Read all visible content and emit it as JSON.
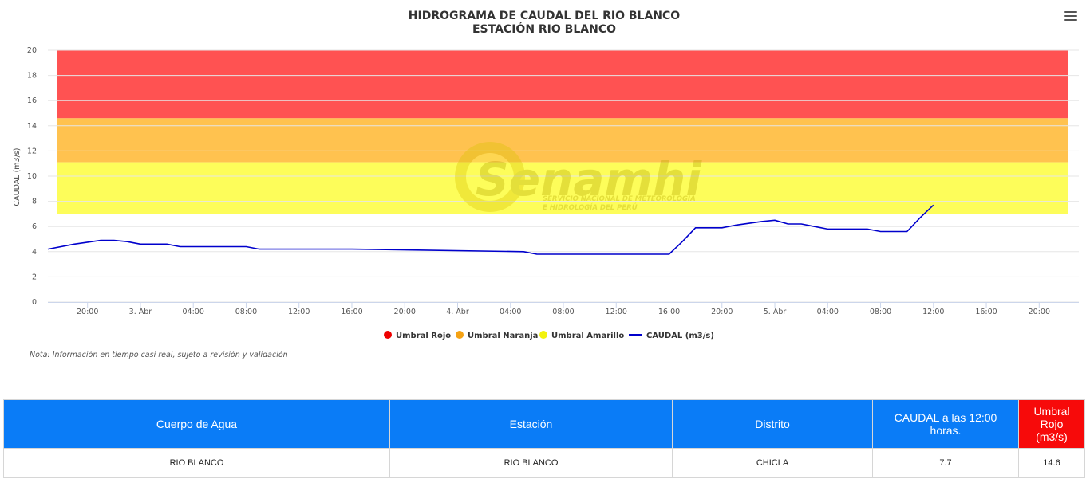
{
  "chart_data": {
    "type": "line",
    "title": "HIDROGRAMA DE CAUDAL DEL RIO BLANCO",
    "subtitle": "ESTACIÓN RIO BLANCO",
    "ylabel": "CAUDAL (m3/s)",
    "xlabel": "",
    "ylim": [
      0,
      20
    ],
    "y_ticks": [
      "0",
      "2",
      "4",
      "6",
      "8",
      "10",
      "12",
      "14",
      "16",
      "18",
      "20"
    ],
    "xlim": [
      "2024-04-02T17:00",
      "2024-04-05T23:00"
    ],
    "x_ticks": [
      {
        "t": "2024-04-02T20:00",
        "label": "20:00"
      },
      {
        "t": "2024-04-03T00:00",
        "label": "3. Abr"
      },
      {
        "t": "2024-04-03T04:00",
        "label": "04:00"
      },
      {
        "t": "2024-04-03T08:00",
        "label": "08:00"
      },
      {
        "t": "2024-04-03T12:00",
        "label": "12:00"
      },
      {
        "t": "2024-04-03T16:00",
        "label": "16:00"
      },
      {
        "t": "2024-04-03T20:00",
        "label": "20:00"
      },
      {
        "t": "2024-04-04T00:00",
        "label": "4. Abr"
      },
      {
        "t": "2024-04-04T04:00",
        "label": "04:00"
      },
      {
        "t": "2024-04-04T08:00",
        "label": "08:00"
      },
      {
        "t": "2024-04-04T12:00",
        "label": "12:00"
      },
      {
        "t": "2024-04-04T16:00",
        "label": "16:00"
      },
      {
        "t": "2024-04-04T20:00",
        "label": "20:00"
      },
      {
        "t": "2024-04-05T00:00",
        "label": "5. Abr"
      },
      {
        "t": "2024-04-05T04:00",
        "label": "04:00"
      },
      {
        "t": "2024-04-05T08:00",
        "label": "08:00"
      },
      {
        "t": "2024-04-05T12:00",
        "label": "12:00"
      },
      {
        "t": "2024-04-05T16:00",
        "label": "16:00"
      },
      {
        "t": "2024-04-05T20:00",
        "label": "20:00"
      }
    ],
    "bands": [
      {
        "name": "Umbral Rojo",
        "from": 14.6,
        "to": 20,
        "color": "#ff5252",
        "legend_color": "#ee0000"
      },
      {
        "name": "Umbral Naranja",
        "from": 11.1,
        "to": 14.6,
        "color": "#ffc24f",
        "legend_color": "#f5a214"
      },
      {
        "name": "Umbral Amarillo",
        "from": 7.0,
        "to": 11.1,
        "color": "#fdfd5a",
        "legend_color": "#f2f20e"
      }
    ],
    "series": [
      {
        "name": "CAUDAL (m3/s)",
        "color": "#0000cc",
        "x": [
          "2024-04-02T17:00",
          "2024-04-02T19:00",
          "2024-04-02T21:00",
          "2024-04-02T22:00",
          "2024-04-02T23:00",
          "2024-04-03T00:00",
          "2024-04-03T01:00",
          "2024-04-03T02:00",
          "2024-04-03T03:00",
          "2024-04-03T04:00",
          "2024-04-03T08:00",
          "2024-04-03T09:00",
          "2024-04-03T15:00",
          "2024-04-03T16:00",
          "2024-04-04T05:00",
          "2024-04-04T06:00",
          "2024-04-04T16:00",
          "2024-04-04T17:00",
          "2024-04-04T18:00",
          "2024-04-04T20:00",
          "2024-04-04T21:00",
          "2024-04-04T23:00",
          "2024-04-05T00:00",
          "2024-04-05T01:00",
          "2024-04-05T02:00",
          "2024-04-05T03:00",
          "2024-04-05T04:00",
          "2024-04-05T07:00",
          "2024-04-05T08:00",
          "2024-04-05T10:00",
          "2024-04-05T11:00",
          "2024-04-05T12:00"
        ],
        "values": [
          4.2,
          4.6,
          4.9,
          4.9,
          4.8,
          4.6,
          4.6,
          4.6,
          4.4,
          4.4,
          4.4,
          4.2,
          4.2,
          4.2,
          4.0,
          3.8,
          3.8,
          4.8,
          5.9,
          5.9,
          6.1,
          6.4,
          6.5,
          6.2,
          6.2,
          6.0,
          5.8,
          5.8,
          5.6,
          5.6,
          6.7,
          7.7
        ]
      }
    ]
  },
  "legend": {
    "items": [
      {
        "label": "Umbral Rojo",
        "color": "#ee0000"
      },
      {
        "label": "Umbral Naranja",
        "color": "#f5a214"
      },
      {
        "label": "Umbral Amarillo",
        "color": "#f2f20e"
      },
      {
        "label": "CAUDAL (m3/s)",
        "color": "#0000cc"
      }
    ]
  },
  "watermark": {
    "brand": "Senamhi",
    "line1": "SERVICIO NACIONAL DE METEOROLOGÍA",
    "line2": "E HIDROLOGÍA DEL PERÚ"
  },
  "note": "Nota: Información en tiempo casi real, sujeto a revisión y validación",
  "table": {
    "headers": [
      "Cuerpo de Agua",
      "Estación",
      "Distrito",
      "CAUDAL a las 12:00 horas.",
      "Umbral Rojo (m3/s)"
    ],
    "row": [
      "RIO BLANCO",
      "RIO BLANCO",
      "CHICLA",
      "7.7",
      "14.6"
    ]
  }
}
